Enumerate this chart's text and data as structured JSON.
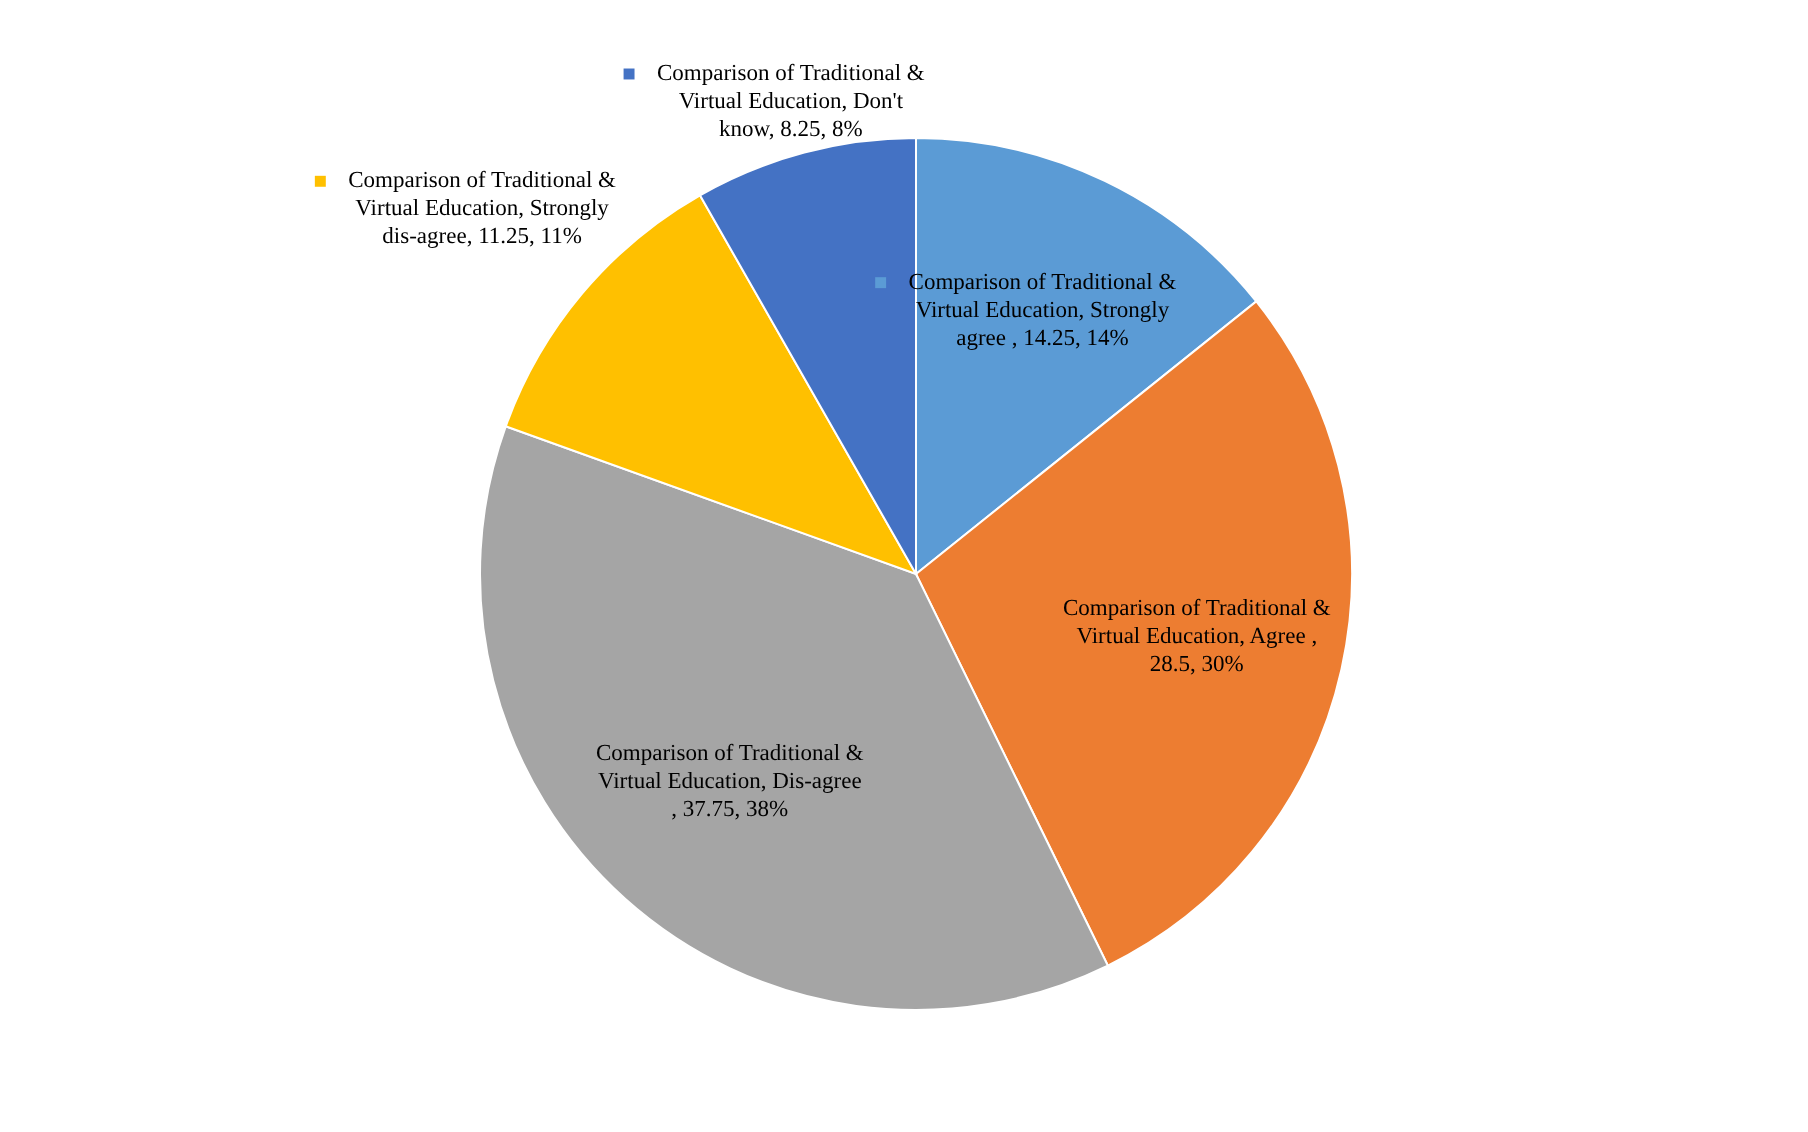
{
  "chart_data": {
    "type": "pie",
    "categories": [
      "Comparison of Traditional & Virtual Education, Strongly agree , 14.25, 14%",
      "Comparison of Traditional & Virtual Education, Agree , 28.5, 30%",
      "Comparison of Traditional & Virtual Education, Dis-agree , 37.75, 38%",
      "Comparison of Traditional & Virtual Education, Strongly dis-agree, 11.25, 11%",
      "Comparison of Traditional & Virtual Education, Don't know, 8.25, 8%"
    ],
    "values": [
      14.25,
      28.5,
      37.75,
      11.25,
      8.25
    ],
    "colors": [
      "#5b9bd5",
      "#ed7d31",
      "#a5a5a5",
      "#ffc000",
      "#4472c4"
    ],
    "legend": "top left"
  }
}
